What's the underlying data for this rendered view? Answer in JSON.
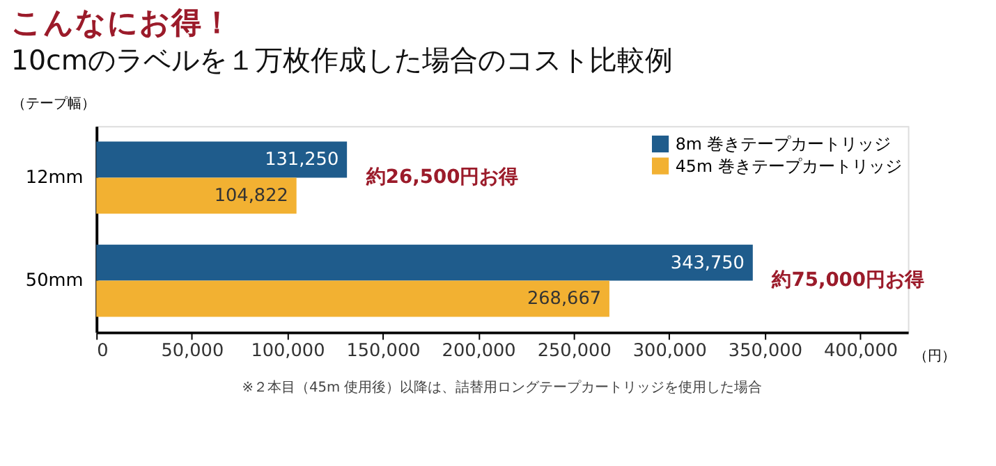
{
  "chart_data": {
    "type": "bar",
    "orientation": "horizontal",
    "title": "こんなにお得！",
    "subtitle": "10cmのラベルを１万枚作成した場合のコスト比較例",
    "ylabel": "（テープ幅）",
    "xlabel": "（円）",
    "categories": [
      "12mm",
      "50mm"
    ],
    "series": [
      {
        "name": "8m 巻きテープカートリッジ",
        "color": "#1f5c8c",
        "values": [
          131250,
          343750
        ],
        "value_labels": [
          "131,250",
          "343,750"
        ]
      },
      {
        "name": "45m 巻きテープカートリッジ",
        "color": "#f2b132",
        "values": [
          104822,
          268667
        ],
        "value_labels": [
          "104,822",
          "268,667"
        ]
      }
    ],
    "xlim": [
      0,
      425000
    ],
    "xticks": [
      0,
      {
        "value": 50000,
        "label": "50,000"
      },
      {
        "value": 100000,
        "label": "100,000"
      },
      {
        "value": 150000,
        "label": "150,000"
      },
      {
        "value": 200000,
        "label": "200,000"
      },
      {
        "value": 250000,
        "label": "250,000"
      },
      {
        "value": 300000,
        "label": "300,000"
      },
      {
        "value": 350000,
        "label": "350,000"
      },
      {
        "value": 400000,
        "label": "400,000"
      }
    ],
    "legend": "top right",
    "grid": false,
    "annotations": [
      "約26,500円お得",
      "約75,000円お得",
      "※２本目（45m 使用後）以降は、詰替用ロングテープカートリッジを使用した場合"
    ]
  }
}
